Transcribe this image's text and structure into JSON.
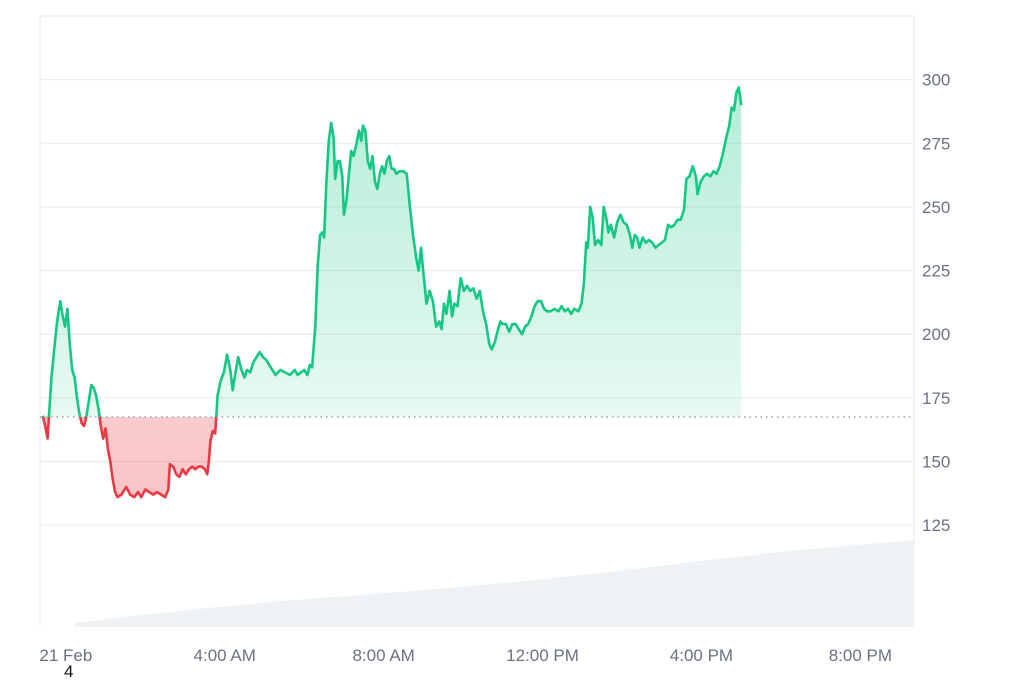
{
  "chart_data": {
    "type": "line",
    "baseline": 167.5,
    "ylim": [
      85,
      325
    ],
    "xlim": [
      -0.6,
      21.3
    ],
    "yticks": [
      125,
      150,
      175,
      200,
      225,
      250,
      275,
      300
    ],
    "xticks": [
      {
        "label": "21 Feb",
        "x": 0.0
      },
      {
        "label": "4:00 AM",
        "x": 4.0
      },
      {
        "label": "8:00 AM",
        "x": 8.0
      },
      {
        "label": "12:00 PM",
        "x": 12.0
      },
      {
        "label": "4:00 PM",
        "x": 16.0
      },
      {
        "label": "8:00 PM",
        "x": 20.0
      }
    ],
    "grid": true,
    "colors": {
      "up": "#16c784",
      "down": "#ea3943",
      "baseline": "#8a8f98",
      "volume": "#eef2f5",
      "grid": "#e7eaee"
    },
    "series": [
      {
        "values": [
          [
            -0.58,
            168
          ],
          [
            -0.52,
            164
          ],
          [
            -0.46,
            159
          ],
          [
            -0.43,
            167
          ],
          [
            -0.36,
            183
          ],
          [
            -0.3,
            193
          ],
          [
            -0.22,
            205
          ],
          [
            -0.14,
            213
          ],
          [
            -0.08,
            207
          ],
          [
            -0.02,
            203
          ],
          [
            0.04,
            210
          ],
          [
            0.1,
            196
          ],
          [
            0.16,
            186
          ],
          [
            0.22,
            183
          ],
          [
            0.28,
            175
          ],
          [
            0.34,
            169
          ],
          [
            0.4,
            165
          ],
          [
            0.46,
            164
          ],
          [
            0.52,
            168
          ],
          [
            0.58,
            174
          ],
          [
            0.64,
            180
          ],
          [
            0.7,
            179
          ],
          [
            0.76,
            176
          ],
          [
            0.82,
            171
          ],
          [
            0.88,
            164
          ],
          [
            0.94,
            159
          ],
          [
            1.0,
            163
          ],
          [
            1.06,
            155
          ],
          [
            1.12,
            150
          ],
          [
            1.18,
            143
          ],
          [
            1.24,
            138
          ],
          [
            1.3,
            136
          ],
          [
            1.4,
            137
          ],
          [
            1.52,
            140
          ],
          [
            1.62,
            137
          ],
          [
            1.72,
            136
          ],
          [
            1.82,
            138
          ],
          [
            1.9,
            136
          ],
          [
            2.0,
            139
          ],
          [
            2.1,
            138
          ],
          [
            2.2,
            137
          ],
          [
            2.3,
            138
          ],
          [
            2.4,
            137
          ],
          [
            2.5,
            136
          ],
          [
            2.58,
            139
          ],
          [
            2.62,
            149
          ],
          [
            2.7,
            148
          ],
          [
            2.78,
            145
          ],
          [
            2.86,
            144
          ],
          [
            2.94,
            147
          ],
          [
            3.02,
            145
          ],
          [
            3.1,
            147
          ],
          [
            3.18,
            148
          ],
          [
            3.26,
            147
          ],
          [
            3.34,
            148
          ],
          [
            3.42,
            148
          ],
          [
            3.5,
            147
          ],
          [
            3.56,
            145
          ],
          [
            3.6,
            150
          ],
          [
            3.64,
            158
          ],
          [
            3.7,
            162
          ],
          [
            3.76,
            161
          ],
          [
            3.82,
            176
          ],
          [
            3.9,
            182
          ],
          [
            3.98,
            185
          ],
          [
            4.06,
            192
          ],
          [
            4.14,
            186
          ],
          [
            4.2,
            178
          ],
          [
            4.26,
            184
          ],
          [
            4.34,
            191
          ],
          [
            4.42,
            186
          ],
          [
            4.5,
            183
          ],
          [
            4.56,
            186
          ],
          [
            4.64,
            185
          ],
          [
            4.72,
            189
          ],
          [
            4.8,
            191
          ],
          [
            4.88,
            193
          ],
          [
            4.96,
            191
          ],
          [
            5.04,
            190
          ],
          [
            5.12,
            188
          ],
          [
            5.2,
            186
          ],
          [
            5.28,
            184
          ],
          [
            5.4,
            186
          ],
          [
            5.52,
            185
          ],
          [
            5.64,
            184
          ],
          [
            5.76,
            186
          ],
          [
            5.84,
            184
          ],
          [
            5.92,
            185
          ],
          [
            6.0,
            186
          ],
          [
            6.08,
            184
          ],
          [
            6.14,
            188
          ],
          [
            6.2,
            187
          ],
          [
            6.28,
            203
          ],
          [
            6.34,
            227
          ],
          [
            6.4,
            239
          ],
          [
            6.46,
            240
          ],
          [
            6.5,
            238
          ],
          [
            6.56,
            260
          ],
          [
            6.62,
            276
          ],
          [
            6.68,
            283
          ],
          [
            6.74,
            277
          ],
          [
            6.78,
            261
          ],
          [
            6.84,
            268
          ],
          [
            6.9,
            268
          ],
          [
            6.96,
            262
          ],
          [
            7.0,
            247
          ],
          [
            7.06,
            252
          ],
          [
            7.12,
            262
          ],
          [
            7.18,
            272
          ],
          [
            7.24,
            270
          ],
          [
            7.32,
            275
          ],
          [
            7.38,
            280
          ],
          [
            7.44,
            276
          ],
          [
            7.48,
            282
          ],
          [
            7.54,
            280
          ],
          [
            7.6,
            268
          ],
          [
            7.66,
            265
          ],
          [
            7.72,
            270
          ],
          [
            7.78,
            260
          ],
          [
            7.84,
            257
          ],
          [
            7.9,
            263
          ],
          [
            7.96,
            266
          ],
          [
            8.02,
            263
          ],
          [
            8.08,
            268
          ],
          [
            8.14,
            270
          ],
          [
            8.2,
            265
          ],
          [
            8.26,
            265
          ],
          [
            8.32,
            263
          ],
          [
            8.4,
            264
          ],
          [
            8.5,
            264
          ],
          [
            8.58,
            263
          ],
          [
            8.66,
            250
          ],
          [
            8.74,
            239
          ],
          [
            8.82,
            230
          ],
          [
            8.88,
            225
          ],
          [
            8.94,
            234
          ],
          [
            9.0,
            224
          ],
          [
            9.08,
            212
          ],
          [
            9.16,
            217
          ],
          [
            9.24,
            213
          ],
          [
            9.32,
            203
          ],
          [
            9.4,
            205
          ],
          [
            9.46,
            202
          ],
          [
            9.52,
            212
          ],
          [
            9.58,
            208
          ],
          [
            9.66,
            217
          ],
          [
            9.72,
            207
          ],
          [
            9.78,
            212
          ],
          [
            9.86,
            211
          ],
          [
            9.94,
            222
          ],
          [
            10.02,
            217
          ],
          [
            10.1,
            219
          ],
          [
            10.18,
            217
          ],
          [
            10.26,
            218
          ],
          [
            10.34,
            214
          ],
          [
            10.42,
            217
          ],
          [
            10.5,
            209
          ],
          [
            10.58,
            204
          ],
          [
            10.66,
            196
          ],
          [
            10.72,
            194
          ],
          [
            10.8,
            197
          ],
          [
            10.88,
            202
          ],
          [
            10.94,
            205
          ],
          [
            11.0,
            204
          ],
          [
            11.08,
            204
          ],
          [
            11.16,
            201
          ],
          [
            11.24,
            204
          ],
          [
            11.32,
            204
          ],
          [
            11.4,
            202
          ],
          [
            11.48,
            200
          ],
          [
            11.56,
            203
          ],
          [
            11.64,
            204
          ],
          [
            11.72,
            207
          ],
          [
            11.8,
            211
          ],
          [
            11.88,
            213
          ],
          [
            11.96,
            213
          ],
          [
            12.04,
            210
          ],
          [
            12.12,
            209
          ],
          [
            12.2,
            209
          ],
          [
            12.3,
            210
          ],
          [
            12.4,
            209
          ],
          [
            12.48,
            211
          ],
          [
            12.56,
            209
          ],
          [
            12.64,
            210
          ],
          [
            12.72,
            208
          ],
          [
            12.8,
            210
          ],
          [
            12.9,
            209
          ],
          [
            12.98,
            212
          ],
          [
            13.04,
            220
          ],
          [
            13.1,
            236
          ],
          [
            13.14,
            234
          ],
          [
            13.2,
            250
          ],
          [
            13.26,
            246
          ],
          [
            13.32,
            235
          ],
          [
            13.4,
            237
          ],
          [
            13.48,
            235
          ],
          [
            13.54,
            250
          ],
          [
            13.6,
            246
          ],
          [
            13.66,
            240
          ],
          [
            13.72,
            243
          ],
          [
            13.8,
            238
          ],
          [
            13.88,
            244
          ],
          [
            13.96,
            247
          ],
          [
            14.04,
            244
          ],
          [
            14.12,
            243
          ],
          [
            14.2,
            239
          ],
          [
            14.26,
            234
          ],
          [
            14.32,
            239
          ],
          [
            14.38,
            238
          ],
          [
            14.44,
            234
          ],
          [
            14.52,
            238
          ],
          [
            14.6,
            236
          ],
          [
            14.68,
            237
          ],
          [
            14.76,
            236
          ],
          [
            14.84,
            234
          ],
          [
            14.92,
            235
          ],
          [
            15.0,
            236
          ],
          [
            15.08,
            237
          ],
          [
            15.16,
            243
          ],
          [
            15.24,
            242
          ],
          [
            15.32,
            243
          ],
          [
            15.4,
            245
          ],
          [
            15.48,
            245
          ],
          [
            15.56,
            249
          ],
          [
            15.62,
            261
          ],
          [
            15.7,
            262
          ],
          [
            15.78,
            266
          ],
          [
            15.86,
            262
          ],
          [
            15.9,
            255
          ],
          [
            15.98,
            260
          ],
          [
            16.06,
            262
          ],
          [
            16.14,
            263
          ],
          [
            16.22,
            262
          ],
          [
            16.3,
            264
          ],
          [
            16.38,
            263
          ],
          [
            16.46,
            266
          ],
          [
            16.54,
            271
          ],
          [
            16.62,
            277
          ],
          [
            16.7,
            282
          ],
          [
            16.76,
            289
          ],
          [
            16.82,
            288
          ],
          [
            16.88,
            295
          ],
          [
            16.94,
            297
          ],
          [
            17.0,
            290
          ]
        ]
      }
    ]
  },
  "footnote": "4"
}
